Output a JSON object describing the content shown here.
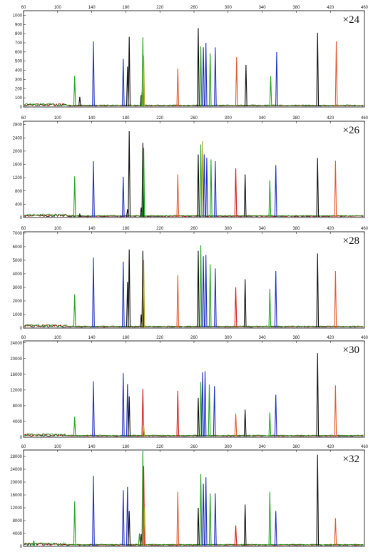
{
  "colors": {
    "blue": "#1f2fbf",
    "green": "#21a321",
    "black": "#111111",
    "orange": "#e2572b",
    "red": "#d41a1a",
    "olive": "#b5a32a"
  },
  "chart_data": [
    {
      "type": "line",
      "cycle_label": "×24",
      "x_ticks": [
        "60",
        "100",
        "140",
        "180",
        "220",
        "260",
        "300",
        "340",
        "380",
        "420",
        "460"
      ],
      "y_ticks": [
        "0",
        "100",
        "200",
        "300",
        "400",
        "500",
        "600",
        "700",
        "800",
        "900",
        "1000"
      ],
      "xlim": [
        60,
        460
      ],
      "ylim": [
        0,
        1050
      ],
      "peaks": [
        {
          "x": 120,
          "y": 340,
          "color": "green"
        },
        {
          "x": 126,
          "y": 110,
          "color": "black"
        },
        {
          "x": 142,
          "y": 715,
          "color": "blue"
        },
        {
          "x": 177,
          "y": 525,
          "color": "blue"
        },
        {
          "x": 182,
          "y": 440,
          "color": "black"
        },
        {
          "x": 184,
          "y": 765,
          "color": "black"
        },
        {
          "x": 198,
          "y": 130,
          "color": "black"
        },
        {
          "x": 199,
          "y": 165,
          "color": "green"
        },
        {
          "x": 200,
          "y": 760,
          "color": "green"
        },
        {
          "x": 201,
          "y": 560,
          "color": "olive"
        },
        {
          "x": 241,
          "y": 420,
          "color": "orange"
        },
        {
          "x": 265,
          "y": 860,
          "color": "black"
        },
        {
          "x": 268,
          "y": 660,
          "color": "green"
        },
        {
          "x": 271,
          "y": 650,
          "color": "blue"
        },
        {
          "x": 274,
          "y": 700,
          "color": "blue"
        },
        {
          "x": 279,
          "y": 585,
          "color": "green"
        },
        {
          "x": 285,
          "y": 650,
          "color": "blue"
        },
        {
          "x": 310,
          "y": 545,
          "color": "orange"
        },
        {
          "x": 321,
          "y": 460,
          "color": "black"
        },
        {
          "x": 350,
          "y": 335,
          "color": "green"
        },
        {
          "x": 357,
          "y": 600,
          "color": "blue"
        },
        {
          "x": 405,
          "y": 810,
          "color": "black"
        },
        {
          "x": 427,
          "y": 715,
          "color": "orange"
        }
      ]
    },
    {
      "type": "line",
      "cycle_label": "×26",
      "x_ticks": [
        "60",
        "100",
        "140",
        "180",
        "220",
        "260",
        "300",
        "340",
        "380",
        "420",
        "460"
      ],
      "y_ticks": [
        "0",
        "400",
        "800",
        "1200",
        "1600",
        "2000",
        "2400",
        "2800"
      ],
      "xlim": [
        60,
        460
      ],
      "ylim": [
        0,
        2900
      ],
      "peaks": [
        {
          "x": 120,
          "y": 1240,
          "color": "green"
        },
        {
          "x": 126,
          "y": 100,
          "color": "black"
        },
        {
          "x": 142,
          "y": 1700,
          "color": "blue"
        },
        {
          "x": 177,
          "y": 1230,
          "color": "blue"
        },
        {
          "x": 182,
          "y": 250,
          "color": "black"
        },
        {
          "x": 184,
          "y": 2600,
          "color": "black"
        },
        {
          "x": 198,
          "y": 300,
          "color": "black"
        },
        {
          "x": 199,
          "y": 220,
          "color": "green"
        },
        {
          "x": 200,
          "y": 2250,
          "color": "black"
        },
        {
          "x": 201,
          "y": 2100,
          "color": "green"
        },
        {
          "x": 241,
          "y": 1300,
          "color": "orange"
        },
        {
          "x": 265,
          "y": 1900,
          "color": "black"
        },
        {
          "x": 268,
          "y": 2200,
          "color": "green"
        },
        {
          "x": 270,
          "y": 2300,
          "color": "olive"
        },
        {
          "x": 272,
          "y": 1900,
          "color": "blue"
        },
        {
          "x": 275,
          "y": 1800,
          "color": "blue"
        },
        {
          "x": 280,
          "y": 1750,
          "color": "green"
        },
        {
          "x": 285,
          "y": 1700,
          "color": "blue"
        },
        {
          "x": 309,
          "y": 1480,
          "color": "red"
        },
        {
          "x": 320,
          "y": 1300,
          "color": "black"
        },
        {
          "x": 349,
          "y": 1120,
          "color": "green"
        },
        {
          "x": 356,
          "y": 1580,
          "color": "blue"
        },
        {
          "x": 405,
          "y": 1790,
          "color": "black"
        },
        {
          "x": 426,
          "y": 1710,
          "color": "orange"
        }
      ]
    },
    {
      "type": "line",
      "cycle_label": "×28",
      "x_ticks": [
        "60",
        "100",
        "140",
        "180",
        "220",
        "260",
        "300",
        "340",
        "380",
        "420",
        "460"
      ],
      "y_ticks": [
        "0",
        "1000",
        "2000",
        "3000",
        "4000",
        "5000",
        "6000",
        "7000"
      ],
      "xlim": [
        60,
        460
      ],
      "ylim": [
        0,
        7100
      ],
      "peaks": [
        {
          "x": 120,
          "y": 2500,
          "color": "green"
        },
        {
          "x": 142,
          "y": 5200,
          "color": "blue"
        },
        {
          "x": 177,
          "y": 4900,
          "color": "blue"
        },
        {
          "x": 182,
          "y": 3400,
          "color": "black"
        },
        {
          "x": 184,
          "y": 5800,
          "color": "black"
        },
        {
          "x": 198,
          "y": 1000,
          "color": "black"
        },
        {
          "x": 200,
          "y": 5700,
          "color": "black"
        },
        {
          "x": 201,
          "y": 5000,
          "color": "olive"
        },
        {
          "x": 241,
          "y": 3900,
          "color": "orange"
        },
        {
          "x": 265,
          "y": 5700,
          "color": "black"
        },
        {
          "x": 268,
          "y": 6100,
          "color": "green"
        },
        {
          "x": 271,
          "y": 5300,
          "color": "blue"
        },
        {
          "x": 274,
          "y": 5400,
          "color": "blue"
        },
        {
          "x": 279,
          "y": 4700,
          "color": "green"
        },
        {
          "x": 285,
          "y": 4400,
          "color": "blue"
        },
        {
          "x": 309,
          "y": 3000,
          "color": "red"
        },
        {
          "x": 320,
          "y": 3600,
          "color": "black"
        },
        {
          "x": 349,
          "y": 2900,
          "color": "green"
        },
        {
          "x": 356,
          "y": 4200,
          "color": "blue"
        },
        {
          "x": 405,
          "y": 5500,
          "color": "black"
        },
        {
          "x": 426,
          "y": 4200,
          "color": "orange"
        }
      ]
    },
    {
      "type": "line",
      "cycle_label": "×30",
      "x_ticks": [
        "60",
        "100",
        "140",
        "180",
        "220",
        "260",
        "300",
        "340",
        "380",
        "420",
        "460"
      ],
      "y_ticks": [
        "0",
        "4000",
        "8000",
        "12000",
        "16000",
        "20000",
        "24000"
      ],
      "xlim": [
        60,
        460
      ],
      "ylim": [
        0,
        24500
      ],
      "peaks": [
        {
          "x": 120,
          "y": 5200,
          "color": "green"
        },
        {
          "x": 142,
          "y": 14200,
          "color": "blue"
        },
        {
          "x": 177,
          "y": 16300,
          "color": "blue"
        },
        {
          "x": 182,
          "y": 13500,
          "color": "blue"
        },
        {
          "x": 184,
          "y": 10400,
          "color": "black"
        },
        {
          "x": 200,
          "y": 12300,
          "color": "red"
        },
        {
          "x": 201,
          "y": 3000,
          "color": "olive"
        },
        {
          "x": 241,
          "y": 11800,
          "color": "red"
        },
        {
          "x": 265,
          "y": 10000,
          "color": "black"
        },
        {
          "x": 268,
          "y": 14000,
          "color": "green"
        },
        {
          "x": 270,
          "y": 16500,
          "color": "blue"
        },
        {
          "x": 273,
          "y": 16800,
          "color": "blue"
        },
        {
          "x": 278,
          "y": 13400,
          "color": "green"
        },
        {
          "x": 284,
          "y": 13000,
          "color": "blue"
        },
        {
          "x": 309,
          "y": 6000,
          "color": "orange"
        },
        {
          "x": 320,
          "y": 7000,
          "color": "black"
        },
        {
          "x": 349,
          "y": 6300,
          "color": "green"
        },
        {
          "x": 356,
          "y": 10800,
          "color": "blue"
        },
        {
          "x": 405,
          "y": 21400,
          "color": "black"
        },
        {
          "x": 426,
          "y": 13200,
          "color": "orange"
        }
      ]
    },
    {
      "type": "line",
      "cycle_label": "×32",
      "x_ticks": [
        "60",
        "100",
        "140",
        "180",
        "220",
        "260",
        "300",
        "340",
        "380",
        "420",
        "460"
      ],
      "y_ticks": [
        "0",
        "4000",
        "8000",
        "12000",
        "16000",
        "20000",
        "24000",
        "28000"
      ],
      "xlim": [
        60,
        460
      ],
      "ylim": [
        0,
        30000
      ],
      "peaks": [
        {
          "x": 72,
          "y": 1800,
          "color": "green"
        },
        {
          "x": 120,
          "y": 14000,
          "color": "green"
        },
        {
          "x": 142,
          "y": 22000,
          "color": "blue"
        },
        {
          "x": 177,
          "y": 17500,
          "color": "blue"
        },
        {
          "x": 182,
          "y": 18500,
          "color": "blue"
        },
        {
          "x": 184,
          "y": 11000,
          "color": "black"
        },
        {
          "x": 196,
          "y": 4000,
          "color": "green"
        },
        {
          "x": 198,
          "y": 3800,
          "color": "black"
        },
        {
          "x": 200,
          "y": 30000,
          "color": "green"
        },
        {
          "x": 201,
          "y": 25000,
          "color": "red"
        },
        {
          "x": 202,
          "y": 12000,
          "color": "olive"
        },
        {
          "x": 241,
          "y": 17000,
          "color": "orange"
        },
        {
          "x": 265,
          "y": 12000,
          "color": "black"
        },
        {
          "x": 268,
          "y": 22500,
          "color": "green"
        },
        {
          "x": 271,
          "y": 19500,
          "color": "blue"
        },
        {
          "x": 274,
          "y": 21500,
          "color": "blue"
        },
        {
          "x": 279,
          "y": 16500,
          "color": "green"
        },
        {
          "x": 285,
          "y": 16500,
          "color": "blue"
        },
        {
          "x": 309,
          "y": 6500,
          "color": "red"
        },
        {
          "x": 320,
          "y": 13000,
          "color": "black"
        },
        {
          "x": 349,
          "y": 17000,
          "color": "green"
        },
        {
          "x": 356,
          "y": 11000,
          "color": "blue"
        },
        {
          "x": 405,
          "y": 28500,
          "color": "black"
        },
        {
          "x": 426,
          "y": 8800,
          "color": "orange"
        }
      ]
    }
  ]
}
